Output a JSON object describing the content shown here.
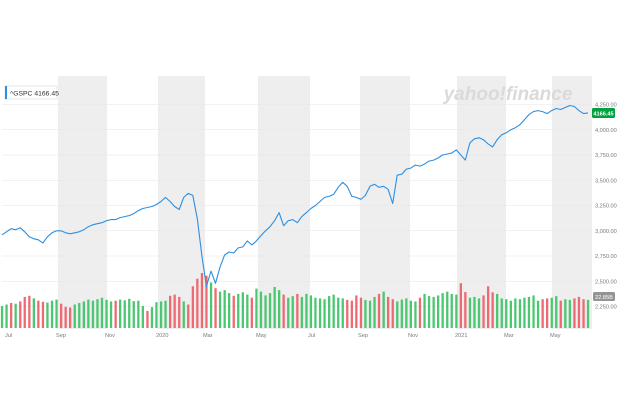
{
  "chart_data": {
    "type": "line",
    "ticker_label": "^GSPC 4166.45",
    "last_price_label": "4166.45",
    "volume_badge": "22.85B",
    "watermark": "yahoo!finance",
    "x_tick_labels": [
      "Jul",
      "Sep",
      "Nov",
      "2020",
      "Mar",
      "May",
      "Jul",
      "Sep",
      "Nov",
      "2021",
      "Mar",
      "May"
    ],
    "y_tick_labels": [
      "4,250.00",
      "4,000.00",
      "3,750.00",
      "3,500.00",
      "3,250.00",
      "3,000.00",
      "2,750.00",
      "2,500.00",
      "2,250.00"
    ],
    "ylim": [
      2125,
      4375
    ],
    "grid": true,
    "series": [
      {
        "values": [
          2960,
          2990,
          3020,
          3010,
          3030,
          2990,
          2940,
          2920,
          2910,
          2880,
          2940,
          2980,
          3000,
          3000,
          2980,
          2970,
          2980,
          2990,
          3010,
          3040,
          3060,
          3070,
          3080,
          3100,
          3110,
          3110,
          3130,
          3140,
          3150,
          3170,
          3200,
          3220,
          3230,
          3240,
          3260,
          3290,
          3330,
          3290,
          3240,
          3210,
          3330,
          3370,
          3350,
          3120,
          2750,
          2450,
          2600,
          2480,
          2640,
          2760,
          2790,
          2780,
          2830,
          2840,
          2900,
          2860,
          2900,
          2950,
          3000,
          3040,
          3100,
          3180,
          3050,
          3100,
          3110,
          3080,
          3140,
          3180,
          3220,
          3250,
          3290,
          3330,
          3340,
          3360,
          3430,
          3480,
          3440,
          3340,
          3330,
          3310,
          3350,
          3440,
          3460,
          3430,
          3440,
          3410,
          3270,
          3550,
          3560,
          3610,
          3620,
          3650,
          3640,
          3660,
          3690,
          3700,
          3720,
          3750,
          3760,
          3770,
          3800,
          3750,
          3700,
          3870,
          3910,
          3920,
          3900,
          3860,
          3830,
          3900,
          3950,
          3970,
          4000,
          4020,
          4050,
          4100,
          4150,
          4180,
          4190,
          4180,
          4160,
          4190,
          4210,
          4200,
          4220,
          4240,
          4230,
          4190,
          4160,
          4166.45
        ]
      }
    ],
    "volume": {
      "values": [
        58,
        62,
        66,
        64,
        70,
        82,
        85,
        78,
        72,
        69,
        67,
        72,
        75,
        64,
        56,
        54,
        62,
        66,
        70,
        75,
        72,
        76,
        80,
        74,
        70,
        72,
        75,
        73,
        77,
        71,
        72,
        58,
        45,
        55,
        68,
        70,
        72,
        85,
        88,
        82,
        70,
        62,
        110,
        130,
        145,
        138,
        120,
        105,
        96,
        100,
        92,
        85,
        90,
        94,
        88,
        80,
        104,
        96,
        86,
        92,
        108,
        100,
        88,
        80,
        84,
        90,
        82,
        90,
        86,
        80,
        78,
        76,
        84,
        88,
        80,
        78,
        74,
        72,
        86,
        80,
        74,
        72,
        82,
        90,
        96,
        82,
        76,
        70,
        75,
        78,
        72,
        70,
        80,
        90,
        84,
        82,
        86,
        92,
        96,
        90,
        88,
        118,
        95,
        80,
        82,
        78,
        86,
        110,
        94,
        90,
        78,
        76,
        72,
        78,
        76,
        80,
        82,
        86,
        72,
        76,
        78,
        80,
        84,
        72,
        76,
        74,
        78,
        82,
        76,
        74
      ],
      "up": [
        true,
        true,
        false,
        true,
        false,
        false,
        false,
        true,
        false,
        false,
        true,
        true,
        true,
        false,
        false,
        false,
        true,
        true,
        true,
        true,
        true,
        true,
        true,
        true,
        true,
        false,
        true,
        true,
        true,
        true,
        true,
        true,
        false,
        true,
        true,
        true,
        true,
        false,
        false,
        false,
        true,
        false,
        false,
        false,
        false,
        false,
        true,
        false,
        true,
        true,
        true,
        false,
        true,
        true,
        true,
        false,
        true,
        true,
        true,
        true,
        true,
        true,
        false,
        true,
        true,
        false,
        true,
        true,
        true,
        true,
        true,
        true,
        true,
        true,
        true,
        true,
        false,
        false,
        false,
        false,
        true,
        true,
        true,
        false,
        true,
        false,
        false,
        true,
        true,
        true,
        true,
        true,
        false,
        true,
        true,
        true,
        true,
        true,
        true,
        true,
        true,
        false,
        false,
        true,
        true,
        true,
        false,
        false,
        false,
        true,
        true,
        true,
        true,
        true,
        true,
        true,
        true,
        true,
        true,
        false,
        false,
        true,
        true,
        false,
        true,
        true,
        false,
        false,
        false,
        true
      ]
    },
    "colors": {
      "line": "#2d8fe0",
      "volume_up": "#4cc771",
      "volume_down": "#ee6a72",
      "badge": "#00a13f",
      "band": "#eeeeee",
      "grid": "#e6e6e6",
      "tick_text": "#7a7a7a",
      "watermark": "#dadada",
      "volume_badge_bg": "#949494"
    }
  }
}
